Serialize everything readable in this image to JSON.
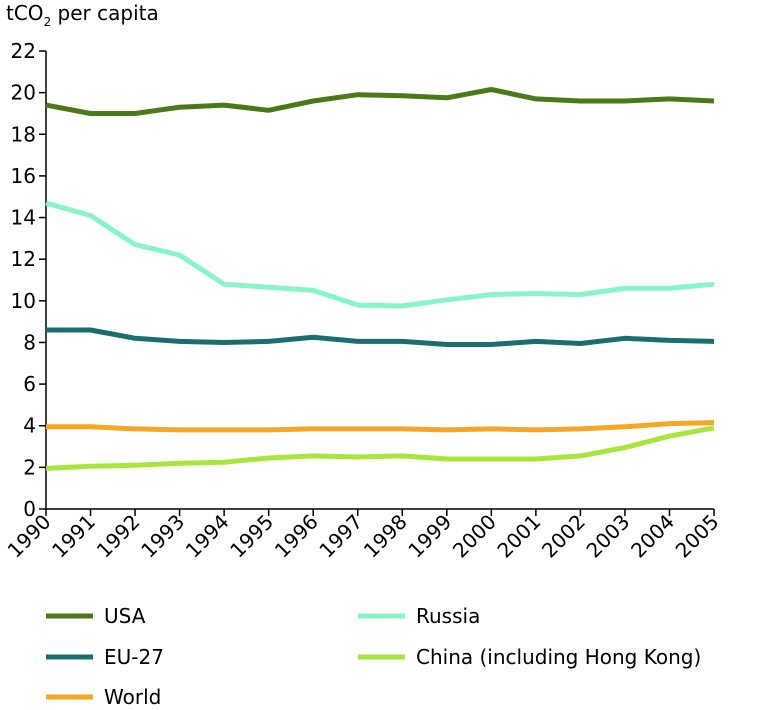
{
  "chart_data": {
    "type": "line",
    "ylabel_prefix": "tCO",
    "ylabel_sub": "2",
    "ylabel_suffix": " per capita",
    "xlabel": "",
    "ylim": [
      0,
      22
    ],
    "yticks": [
      0,
      2,
      4,
      6,
      8,
      10,
      12,
      14,
      16,
      18,
      20,
      22
    ],
    "grid": false,
    "legend_placement": "bottom",
    "x": [
      "1990",
      "1991",
      "1992",
      "1993",
      "1994",
      "1995",
      "1996",
      "1997",
      "1998",
      "1999",
      "2000",
      "2001",
      "2002",
      "2003",
      "2004",
      "2005"
    ],
    "series": [
      {
        "name": "USA",
        "color": "#4a7a18",
        "values": [
          19.4,
          19.0,
          19.0,
          19.3,
          19.4,
          19.15,
          19.6,
          19.9,
          19.85,
          19.75,
          20.15,
          19.7,
          19.6,
          19.6,
          19.7,
          19.6
        ]
      },
      {
        "name": "Russia",
        "color": "#87f5c8",
        "values": [
          14.7,
          14.1,
          12.7,
          12.2,
          10.8,
          10.65,
          10.5,
          9.8,
          9.75,
          10.05,
          10.3,
          10.35,
          10.3,
          10.6,
          10.6,
          10.8
        ]
      },
      {
        "name": "EU-27",
        "color": "#1a6e6e",
        "values": [
          8.6,
          8.6,
          8.2,
          8.05,
          8.0,
          8.05,
          8.25,
          8.05,
          8.05,
          7.9,
          7.9,
          8.05,
          7.95,
          8.2,
          8.1,
          8.05
        ]
      },
      {
        "name": "China (including Hong Kong)",
        "color": "#a8e63c",
        "values": [
          1.95,
          2.05,
          2.1,
          2.2,
          2.25,
          2.45,
          2.55,
          2.5,
          2.55,
          2.4,
          2.4,
          2.4,
          2.55,
          2.95,
          3.5,
          3.9
        ]
      },
      {
        "name": "World",
        "color": "#f5a623",
        "values": [
          3.95,
          3.95,
          3.85,
          3.8,
          3.8,
          3.8,
          3.85,
          3.85,
          3.85,
          3.8,
          3.85,
          3.8,
          3.85,
          3.95,
          4.1,
          4.15
        ]
      }
    ],
    "legend": [
      {
        "name": "USA",
        "color": "#4a7a18"
      },
      {
        "name": "Russia",
        "color": "#87f5c8"
      },
      {
        "name": "EU-27",
        "color": "#1a6e6e"
      },
      {
        "name": "China (including Hong Kong)",
        "color": "#a8e63c"
      },
      {
        "name": "World",
        "color": "#f5a623"
      }
    ]
  }
}
